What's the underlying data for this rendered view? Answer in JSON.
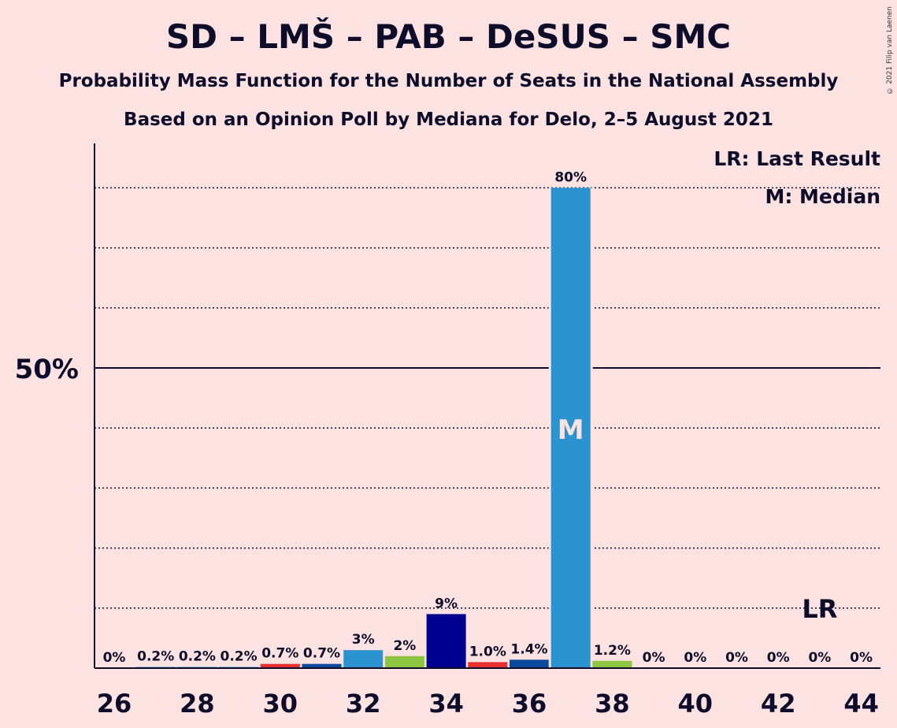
{
  "title": "SD – LMŠ – PAB – DeSUS – SMC",
  "subtitle_1": "Probability Mass Function for the Number of Seats in the National Assembly",
  "subtitle_2": "Based on an Opinion Poll by Mediana for Delo, 2–5 August 2021",
  "copyright": "© 2021 Filip van Laenen",
  "legend": {
    "last_result": "LR: Last Result",
    "median": "M: Median"
  },
  "chart_data": {
    "type": "bar",
    "x": [
      26,
      27,
      28,
      29,
      30,
      31,
      32,
      33,
      34,
      35,
      36,
      37,
      38,
      39,
      40,
      41,
      42,
      43,
      44
    ],
    "values": [
      0,
      0.2,
      0.2,
      0.2,
      0.7,
      0.7,
      3,
      2,
      9,
      1.0,
      1.4,
      80,
      1.2,
      0,
      0,
      0,
      0,
      0,
      0
    ],
    "labels": [
      "0%",
      "0.2%",
      "0.2%",
      "0.2%",
      "0.7%",
      "0.7%",
      "3%",
      "2%",
      "9%",
      "1.0%",
      "1.4%",
      "80%",
      "1.2%",
      "0%",
      "0%",
      "0%",
      "0%",
      "0%",
      "0%"
    ],
    "colors": [
      "#2b94d0",
      "#2b94d0",
      "#2b94d0",
      "#2b94d0",
      "#e5302e",
      "#0a4a9e",
      "#2b94d0",
      "#8cc640",
      "#000090",
      "#e5302e",
      "#0a4a9e",
      "#2b94d0",
      "#8cc640",
      "#2b94d0",
      "#2b94d0",
      "#2b94d0",
      "#2b94d0",
      "#2b94d0",
      "#2b94d0"
    ],
    "xticks": [
      26,
      28,
      30,
      32,
      34,
      36,
      38,
      40,
      42,
      44
    ],
    "ylim": [
      0,
      87
    ],
    "major_line": 50,
    "major_label": "50%",
    "grid": [
      10,
      20,
      30,
      40,
      60,
      70,
      80
    ],
    "median": {
      "x": 37,
      "label": "M"
    },
    "last_result": {
      "x": 43,
      "label": "LR"
    }
  }
}
